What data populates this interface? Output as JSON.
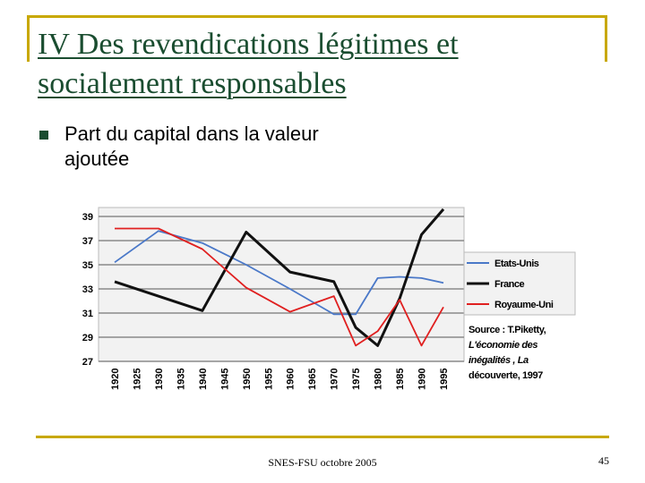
{
  "slide": {
    "title": "IV   Des revendications légitimes et socialement responsables",
    "bullet": "Part du capital dans la valeur ajoutée",
    "footer": "SNES-FSU octobre 2005",
    "page_number": "45"
  },
  "chart_data": {
    "type": "line",
    "title": "",
    "xlabel": "",
    "ylabel": "",
    "ylim": [
      27,
      39
    ],
    "yticks": [
      39,
      37,
      35,
      33,
      31,
      29,
      27
    ],
    "categories": [
      "1920",
      "1925",
      "1930",
      "1935",
      "1940",
      "1945",
      "1950",
      "1955",
      "1960",
      "1965",
      "1970",
      "1975",
      "1980",
      "1985",
      "1990",
      "1995"
    ],
    "series": [
      {
        "name": "Etats-Unis",
        "color": "#4a78c8",
        "values": [
          35.2,
          null,
          37.8,
          null,
          36.8,
          null,
          35.0,
          null,
          33.0,
          null,
          30.9,
          30.9,
          33.9,
          34.0,
          33.9,
          33.5
        ]
      },
      {
        "name": "France",
        "color": "#111111",
        "values": [
          33.6,
          null,
          null,
          null,
          31.2,
          null,
          37.7,
          null,
          34.4,
          null,
          33.6,
          29.8,
          28.3,
          32.2,
          37.5,
          39.6
        ]
      },
      {
        "name": "Royaume-Uni",
        "color": "#e02020",
        "values": [
          38.0,
          null,
          38.0,
          null,
          36.3,
          null,
          33.1,
          null,
          31.1,
          null,
          32.4,
          28.3,
          29.5,
          32.1,
          28.3,
          31.5
        ]
      }
    ],
    "legend_position": "right",
    "annotation": [
      "Source : T.Piketty,",
      "L'économie des",
      "inégalités , La",
      "découverte, 1997"
    ]
  }
}
